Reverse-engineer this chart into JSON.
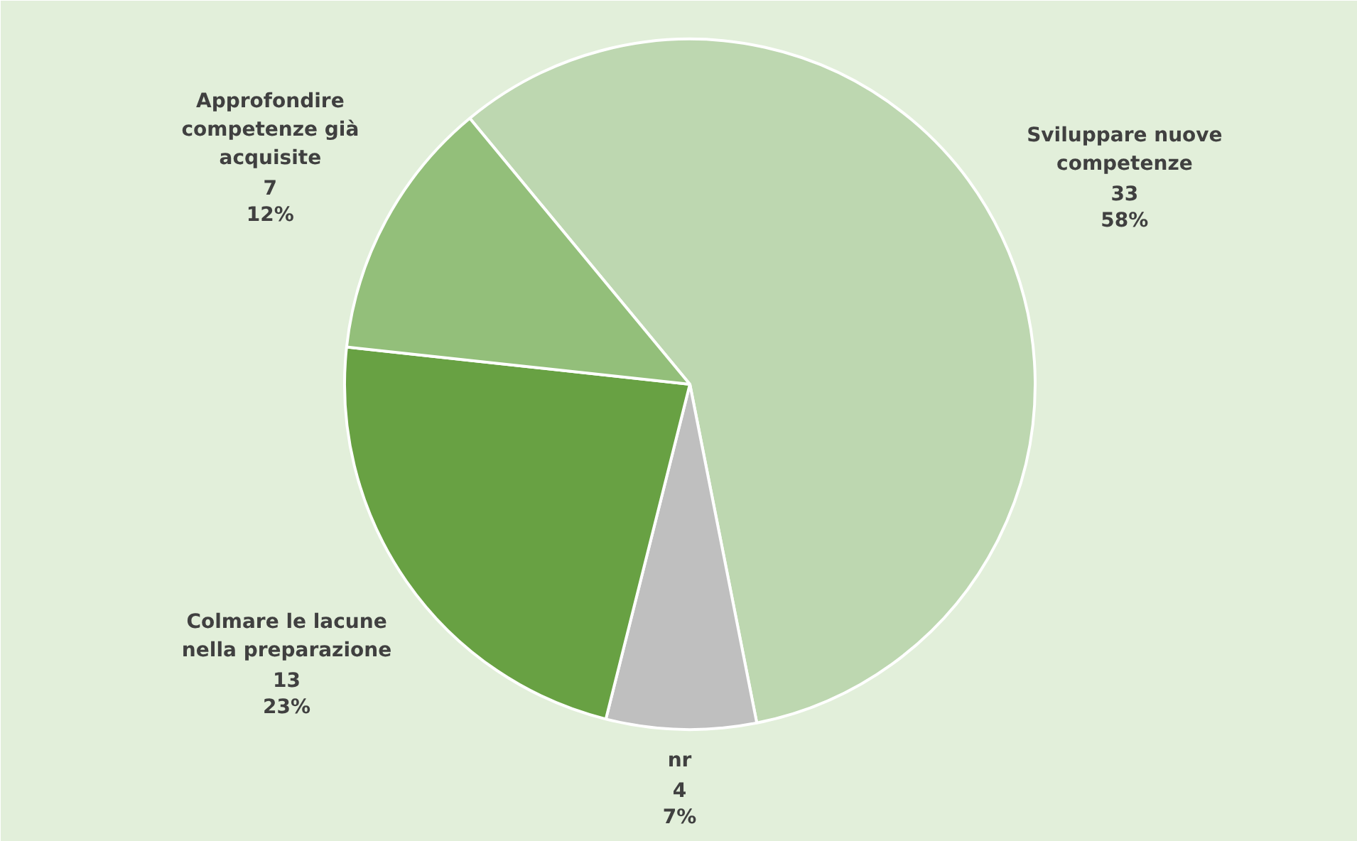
{
  "chart_data": {
    "type": "pie",
    "categories": [
      "Sviluppare nuove competenze",
      "nr",
      "Colmare le lacune nella preparazione",
      "Approfondire competenze già acquisite"
    ],
    "values": [
      33,
      4,
      13,
      7
    ],
    "value_labels": [
      "33\n58%",
      "4\n7%",
      "13\n23%",
      "7\n12%"
    ],
    "colors": [
      "#bdd7b0",
      "#bfbfbf",
      "#68a143",
      "#93bf7a"
    ]
  }
}
